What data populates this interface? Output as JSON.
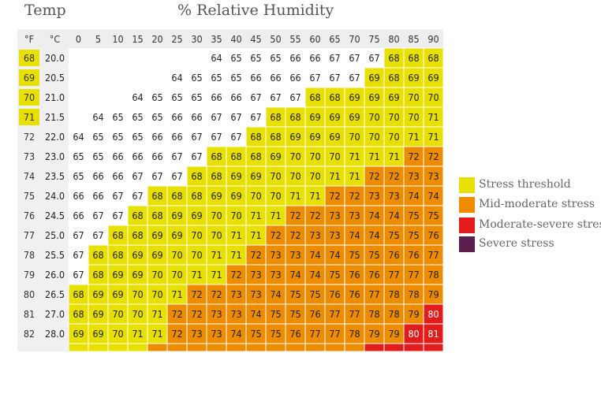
{
  "chart_data": {
    "type": "heatmap",
    "title_left": "Temp",
    "title_center": "% Relative Humidity",
    "row_header_f": "°F",
    "row_header_c": "°C",
    "humidity": [
      "0",
      "5",
      "10",
      "15",
      "20",
      "25",
      "30",
      "35",
      "40",
      "45",
      "50",
      "55",
      "60",
      "65",
      "70",
      "75",
      "80",
      "85",
      "90"
    ],
    "rows": [
      {
        "f": "68",
        "c": "20.0",
        "v": [
          null,
          null,
          null,
          null,
          null,
          null,
          null,
          64,
          65,
          65,
          65,
          66,
          66,
          67,
          67,
          67,
          68,
          68,
          68
        ],
        "z": [
          0,
          0,
          0,
          0,
          0,
          0,
          0,
          0,
          0,
          0,
          0,
          0,
          0,
          0,
          0,
          0,
          1,
          1,
          1
        ]
      },
      {
        "f": "69",
        "c": "20.5",
        "v": [
          null,
          null,
          null,
          null,
          null,
          64,
          65,
          65,
          65,
          66,
          66,
          66,
          67,
          67,
          67,
          69,
          68,
          69,
          69
        ],
        "z": [
          0,
          0,
          0,
          0,
          0,
          0,
          0,
          0,
          0,
          0,
          0,
          0,
          0,
          0,
          0,
          1,
          1,
          1,
          1
        ]
      },
      {
        "f": "70",
        "c": "21.0",
        "v": [
          null,
          null,
          null,
          64,
          65,
          65,
          65,
          66,
          66,
          67,
          67,
          67,
          68,
          68,
          69,
          69,
          69,
          70,
          70
        ],
        "z": [
          0,
          0,
          0,
          0,
          0,
          0,
          0,
          0,
          0,
          0,
          0,
          0,
          1,
          1,
          1,
          1,
          1,
          1,
          1
        ]
      },
      {
        "f": "71",
        "c": "21.5",
        "v": [
          null,
          64,
          65,
          65,
          65,
          66,
          66,
          67,
          67,
          67,
          68,
          68,
          69,
          69,
          69,
          70,
          70,
          70,
          71
        ],
        "z": [
          0,
          0,
          0,
          0,
          0,
          0,
          0,
          0,
          0,
          0,
          1,
          1,
          1,
          1,
          1,
          1,
          1,
          1,
          1
        ]
      },
      {
        "f": "72",
        "c": "22.0",
        "v": [
          64,
          65,
          65,
          65,
          66,
          66,
          67,
          67,
          67,
          68,
          68,
          69,
          69,
          69,
          70,
          70,
          70,
          71,
          71
        ],
        "z": [
          0,
          0,
          0,
          0,
          0,
          0,
          0,
          0,
          0,
          1,
          1,
          1,
          1,
          1,
          1,
          1,
          1,
          1,
          1
        ]
      },
      {
        "f": "73",
        "c": "23.0",
        "v": [
          65,
          65,
          66,
          66,
          66,
          67,
          67,
          68,
          68,
          68,
          69,
          70,
          70,
          70,
          71,
          71,
          71,
          72,
          72
        ],
        "z": [
          0,
          0,
          0,
          0,
          0,
          0,
          0,
          1,
          1,
          1,
          1,
          1,
          1,
          1,
          1,
          1,
          1,
          2,
          2
        ]
      },
      {
        "f": "74",
        "c": "23.5",
        "v": [
          65,
          66,
          66,
          67,
          67,
          67,
          68,
          68,
          69,
          69,
          70,
          70,
          70,
          71,
          71,
          72,
          72,
          73,
          73
        ],
        "z": [
          0,
          0,
          0,
          0,
          0,
          0,
          1,
          1,
          1,
          1,
          1,
          1,
          1,
          1,
          1,
          2,
          2,
          2,
          2
        ]
      },
      {
        "f": "75",
        "c": "24.0",
        "v": [
          66,
          66,
          67,
          67,
          68,
          68,
          68,
          69,
          69,
          70,
          70,
          71,
          71,
          72,
          72,
          73,
          73,
          74,
          74
        ],
        "z": [
          0,
          0,
          0,
          0,
          1,
          1,
          1,
          1,
          1,
          1,
          1,
          1,
          1,
          2,
          2,
          2,
          2,
          2,
          2
        ]
      },
      {
        "f": "76",
        "c": "24.5",
        "v": [
          66,
          67,
          67,
          68,
          68,
          69,
          69,
          70,
          70,
          71,
          71,
          72,
          72,
          73,
          73,
          74,
          74,
          75,
          75
        ],
        "z": [
          0,
          0,
          0,
          1,
          1,
          1,
          1,
          1,
          1,
          1,
          1,
          2,
          2,
          2,
          2,
          2,
          2,
          2,
          2
        ]
      },
      {
        "f": "77",
        "c": "25.0",
        "v": [
          67,
          67,
          68,
          68,
          69,
          69,
          70,
          70,
          71,
          71,
          72,
          72,
          73,
          73,
          74,
          74,
          75,
          75,
          76
        ],
        "z": [
          0,
          0,
          1,
          1,
          1,
          1,
          1,
          1,
          1,
          1,
          2,
          2,
          2,
          2,
          2,
          2,
          2,
          2,
          2
        ]
      },
      {
        "f": "78",
        "c": "25.5",
        "v": [
          67,
          68,
          68,
          69,
          69,
          70,
          70,
          71,
          71,
          72,
          73,
          73,
          74,
          74,
          75,
          75,
          76,
          76,
          77
        ],
        "z": [
          0,
          1,
          1,
          1,
          1,
          1,
          1,
          1,
          1,
          2,
          2,
          2,
          2,
          2,
          2,
          2,
          2,
          2,
          2
        ]
      },
      {
        "f": "79",
        "c": "26.0",
        "v": [
          67,
          68,
          69,
          69,
          70,
          70,
          71,
          71,
          72,
          73,
          73,
          74,
          74,
          75,
          76,
          76,
          77,
          77,
          78
        ],
        "z": [
          0,
          1,
          1,
          1,
          1,
          1,
          1,
          1,
          2,
          2,
          2,
          2,
          2,
          2,
          2,
          2,
          2,
          2,
          2
        ]
      },
      {
        "f": "80",
        "c": "26.5",
        "v": [
          68,
          69,
          69,
          70,
          70,
          71,
          72,
          72,
          73,
          73,
          74,
          75,
          75,
          76,
          76,
          77,
          78,
          78,
          79
        ],
        "z": [
          1,
          1,
          1,
          1,
          1,
          1,
          2,
          2,
          2,
          2,
          2,
          2,
          2,
          2,
          2,
          2,
          2,
          2,
          2
        ]
      },
      {
        "f": "81",
        "c": "27.0",
        "v": [
          68,
          69,
          70,
          70,
          71,
          72,
          72,
          73,
          73,
          74,
          75,
          75,
          76,
          77,
          77,
          78,
          78,
          79,
          80
        ],
        "z": [
          1,
          1,
          1,
          1,
          1,
          2,
          2,
          2,
          2,
          2,
          2,
          2,
          2,
          2,
          2,
          2,
          2,
          2,
          3
        ]
      },
      {
        "f": "82",
        "c": "28.0",
        "v": [
          69,
          69,
          70,
          71,
          71,
          72,
          73,
          73,
          74,
          75,
          75,
          76,
          77,
          77,
          78,
          79,
          79,
          80,
          81
        ],
        "z": [
          1,
          1,
          1,
          1,
          1,
          2,
          2,
          2,
          2,
          2,
          2,
          2,
          2,
          2,
          2,
          2,
          2,
          3,
          3
        ]
      }
    ],
    "legend": [
      {
        "label": "Stress threshold",
        "color": "#E8E000"
      },
      {
        "label": "Mid-moderate stress",
        "color": "#EE8C00"
      },
      {
        "label": "Moderate-severe stress",
        "color": "#E21B1B"
      },
      {
        "label": "Severe stress",
        "color": "#5A1F4E"
      }
    ],
    "zone_colors": [
      "#ffffff",
      "#E8E000",
      "#EE8C00",
      "#E21B1B",
      "#5A1F4E"
    ],
    "partial_row_zones": [
      1,
      1,
      1,
      1,
      2,
      2,
      2,
      2,
      2,
      2,
      2,
      2,
      2,
      2,
      2,
      3,
      3,
      3,
      3
    ]
  }
}
